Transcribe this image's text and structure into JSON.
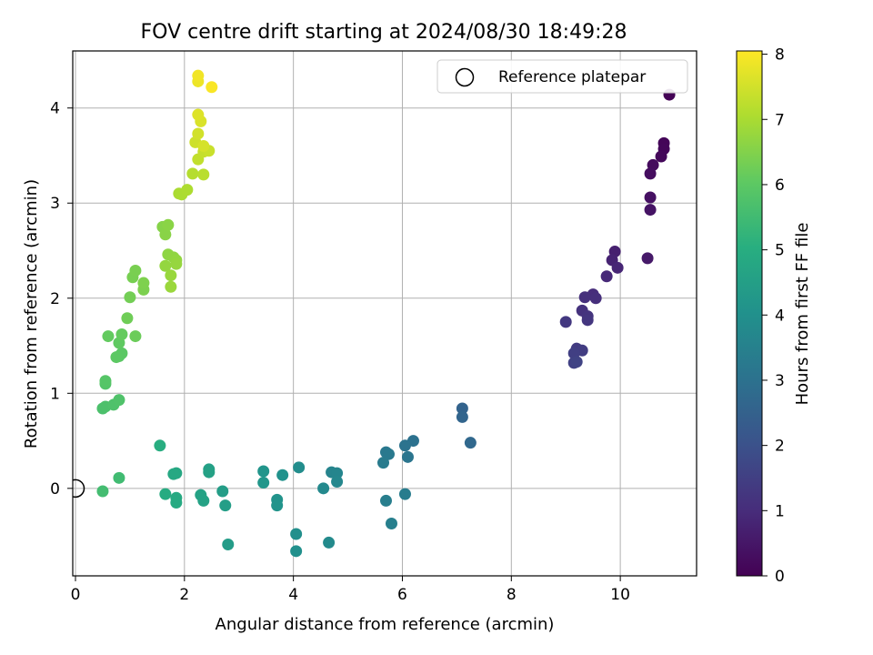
{
  "chart_data": {
    "type": "scatter",
    "title": "FOV centre drift starting at 2024/08/30 18:49:28",
    "xlabel": "Angular distance from reference (arcmin)",
    "ylabel": "Rotation from reference (arcmin)",
    "xlim": [
      -0.05,
      11.4
    ],
    "ylim": [
      -0.92,
      4.6
    ],
    "xticks": [
      0,
      2,
      4,
      6,
      8,
      10
    ],
    "yticks": [
      0,
      1,
      2,
      3,
      4
    ],
    "grid": true,
    "legend": {
      "position": "top-right",
      "entries": [
        "Reference platepar"
      ]
    },
    "colorbar": {
      "label": "Hours from first FF file",
      "min": 0,
      "max": 8.05,
      "ticks": [
        0,
        1,
        2,
        3,
        4,
        5,
        6,
        7,
        8
      ],
      "colormap": "viridis"
    },
    "reference_point": {
      "x": 0,
      "y": 0
    },
    "series": [
      {
        "marker": "circle",
        "points": [
          {
            "x": 10.9,
            "y": 4.14,
            "h": 0.05
          },
          {
            "x": 10.8,
            "y": 3.63,
            "h": 0.1
          },
          {
            "x": 10.8,
            "y": 3.57,
            "h": 0.12
          },
          {
            "x": 10.75,
            "y": 3.49,
            "h": 0.15
          },
          {
            "x": 10.6,
            "y": 3.4,
            "h": 0.22
          },
          {
            "x": 10.55,
            "y": 3.31,
            "h": 0.28
          },
          {
            "x": 10.55,
            "y": 3.06,
            "h": 0.35
          },
          {
            "x": 10.55,
            "y": 2.93,
            "h": 0.42
          },
          {
            "x": 10.5,
            "y": 2.42,
            "h": 0.55
          },
          {
            "x": 9.9,
            "y": 2.49,
            "h": 0.7
          },
          {
            "x": 9.85,
            "y": 2.4,
            "h": 0.78
          },
          {
            "x": 9.95,
            "y": 2.32,
            "h": 0.85
          },
          {
            "x": 9.75,
            "y": 2.23,
            "h": 0.92
          },
          {
            "x": 9.5,
            "y": 2.04,
            "h": 1.0
          },
          {
            "x": 9.55,
            "y": 2.0,
            "h": 1.05
          },
          {
            "x": 9.35,
            "y": 2.01,
            "h": 1.1
          },
          {
            "x": 9.3,
            "y": 1.87,
            "h": 1.15
          },
          {
            "x": 9.4,
            "y": 1.81,
            "h": 1.2
          },
          {
            "x": 9.4,
            "y": 1.77,
            "h": 1.25
          },
          {
            "x": 9.0,
            "y": 1.75,
            "h": 1.3
          },
          {
            "x": 9.2,
            "y": 1.47,
            "h": 1.4
          },
          {
            "x": 9.3,
            "y": 1.45,
            "h": 1.45
          },
          {
            "x": 9.15,
            "y": 1.42,
            "h": 1.5
          },
          {
            "x": 9.15,
            "y": 1.32,
            "h": 1.55
          },
          {
            "x": 9.2,
            "y": 1.33,
            "h": 1.6
          },
          {
            "x": 7.1,
            "y": 0.84,
            "h": 2.55
          },
          {
            "x": 7.1,
            "y": 0.75,
            "h": 2.6
          },
          {
            "x": 7.25,
            "y": 0.48,
            "h": 2.7
          },
          {
            "x": 6.2,
            "y": 0.5,
            "h": 3.0
          },
          {
            "x": 6.05,
            "y": 0.45,
            "h": 3.05
          },
          {
            "x": 6.1,
            "y": 0.33,
            "h": 3.1
          },
          {
            "x": 5.7,
            "y": 0.38,
            "h": 3.2
          },
          {
            "x": 5.75,
            "y": 0.36,
            "h": 3.25
          },
          {
            "x": 5.65,
            "y": 0.27,
            "h": 3.3
          },
          {
            "x": 6.05,
            "y": -0.06,
            "h": 3.35
          },
          {
            "x": 5.7,
            "y": -0.13,
            "h": 3.4
          },
          {
            "x": 5.8,
            "y": -0.37,
            "h": 3.45
          },
          {
            "x": 4.7,
            "y": 0.17,
            "h": 3.6
          },
          {
            "x": 4.8,
            "y": 0.16,
            "h": 3.65
          },
          {
            "x": 4.8,
            "y": 0.07,
            "h": 3.7
          },
          {
            "x": 4.55,
            "y": 0.0,
            "h": 3.75
          },
          {
            "x": 4.65,
            "y": -0.57,
            "h": 3.8
          },
          {
            "x": 4.1,
            "y": 0.22,
            "h": 3.9
          },
          {
            "x": 4.05,
            "y": -0.48,
            "h": 3.95
          },
          {
            "x": 4.05,
            "y": -0.66,
            "h": 4.0
          },
          {
            "x": 3.8,
            "y": 0.14,
            "h": 4.05
          },
          {
            "x": 3.7,
            "y": -0.12,
            "h": 4.1
          },
          {
            "x": 3.7,
            "y": -0.18,
            "h": 4.12
          },
          {
            "x": 3.45,
            "y": 0.18,
            "h": 4.15
          },
          {
            "x": 3.45,
            "y": 0.06,
            "h": 4.2
          },
          {
            "x": 2.8,
            "y": -0.59,
            "h": 4.4
          },
          {
            "x": 2.7,
            "y": -0.03,
            "h": 4.45
          },
          {
            "x": 2.75,
            "y": -0.18,
            "h": 4.48
          },
          {
            "x": 2.45,
            "y": 0.2,
            "h": 4.55
          },
          {
            "x": 2.45,
            "y": 0.17,
            "h": 4.58
          },
          {
            "x": 2.3,
            "y": -0.07,
            "h": 4.6
          },
          {
            "x": 2.35,
            "y": -0.13,
            "h": 4.62
          },
          {
            "x": 1.85,
            "y": 0.16,
            "h": 4.8
          },
          {
            "x": 1.8,
            "y": 0.15,
            "h": 4.82
          },
          {
            "x": 1.85,
            "y": -0.1,
            "h": 4.85
          },
          {
            "x": 1.85,
            "y": -0.15,
            "h": 4.88
          },
          {
            "x": 1.65,
            "y": -0.06,
            "h": 4.92
          },
          {
            "x": 1.55,
            "y": 0.45,
            "h": 5.0
          },
          {
            "x": 0.8,
            "y": 0.11,
            "h": 5.5
          },
          {
            "x": 0.5,
            "y": -0.03,
            "h": 5.55
          },
          {
            "x": 0.5,
            "y": 0.84,
            "h": 5.7
          },
          {
            "x": 0.55,
            "y": 0.86,
            "h": 5.72
          },
          {
            "x": 0.7,
            "y": 0.88,
            "h": 5.75
          },
          {
            "x": 0.8,
            "y": 0.93,
            "h": 5.78
          },
          {
            "x": 0.55,
            "y": 1.1,
            "h": 5.85
          },
          {
            "x": 0.55,
            "y": 1.13,
            "h": 5.88
          },
          {
            "x": 0.8,
            "y": 1.39,
            "h": 5.95
          },
          {
            "x": 0.85,
            "y": 1.42,
            "h": 5.98
          },
          {
            "x": 0.75,
            "y": 1.38,
            "h": 6.0
          },
          {
            "x": 0.8,
            "y": 1.53,
            "h": 6.05
          },
          {
            "x": 0.6,
            "y": 1.6,
            "h": 6.1
          },
          {
            "x": 0.85,
            "y": 1.62,
            "h": 6.12
          },
          {
            "x": 1.1,
            "y": 1.6,
            "h": 6.2
          },
          {
            "x": 0.95,
            "y": 1.79,
            "h": 6.25
          },
          {
            "x": 1.0,
            "y": 2.01,
            "h": 6.3
          },
          {
            "x": 1.05,
            "y": 2.22,
            "h": 6.35
          },
          {
            "x": 1.1,
            "y": 2.29,
            "h": 6.38
          },
          {
            "x": 1.25,
            "y": 2.09,
            "h": 6.42
          },
          {
            "x": 1.25,
            "y": 2.16,
            "h": 6.45
          },
          {
            "x": 1.6,
            "y": 2.75,
            "h": 6.55
          },
          {
            "x": 1.65,
            "y": 2.67,
            "h": 6.58
          },
          {
            "x": 1.7,
            "y": 2.77,
            "h": 6.6
          },
          {
            "x": 1.7,
            "y": 2.46,
            "h": 6.65
          },
          {
            "x": 1.8,
            "y": 2.43,
            "h": 6.68
          },
          {
            "x": 1.85,
            "y": 2.4,
            "h": 6.7
          },
          {
            "x": 1.65,
            "y": 2.34,
            "h": 6.72
          },
          {
            "x": 1.85,
            "y": 2.36,
            "h": 6.75
          },
          {
            "x": 1.75,
            "y": 2.24,
            "h": 6.78
          },
          {
            "x": 1.75,
            "y": 2.12,
            "h": 6.8
          },
          {
            "x": 1.9,
            "y": 3.1,
            "h": 7.0
          },
          {
            "x": 1.95,
            "y": 3.09,
            "h": 7.02
          },
          {
            "x": 2.05,
            "y": 3.14,
            "h": 7.05
          },
          {
            "x": 2.15,
            "y": 3.31,
            "h": 7.15
          },
          {
            "x": 2.35,
            "y": 3.3,
            "h": 7.2
          },
          {
            "x": 2.25,
            "y": 3.46,
            "h": 7.3
          },
          {
            "x": 2.35,
            "y": 3.54,
            "h": 7.35
          },
          {
            "x": 2.45,
            "y": 3.55,
            "h": 7.4
          },
          {
            "x": 2.2,
            "y": 3.64,
            "h": 7.45
          },
          {
            "x": 2.25,
            "y": 3.73,
            "h": 7.5
          },
          {
            "x": 2.35,
            "y": 3.6,
            "h": 7.55
          },
          {
            "x": 2.3,
            "y": 3.86,
            "h": 7.6
          },
          {
            "x": 2.25,
            "y": 3.93,
            "h": 7.65
          },
          {
            "x": 2.25,
            "y": 4.28,
            "h": 7.85
          },
          {
            "x": 2.25,
            "y": 4.34,
            "h": 7.9
          },
          {
            "x": 2.5,
            "y": 4.22,
            "h": 8.0
          }
        ]
      }
    ]
  }
}
